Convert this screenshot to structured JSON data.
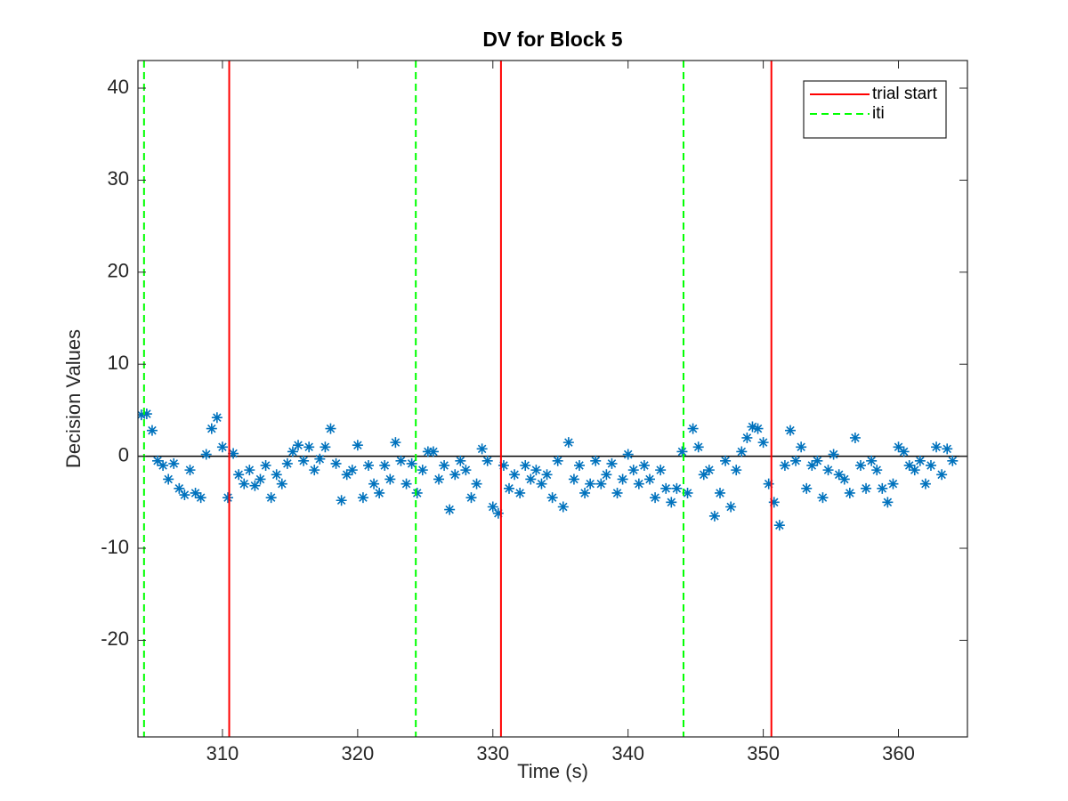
{
  "chart_data": {
    "type": "scatter",
    "title": "DV for Block 5",
    "xlabel": "Time (s)",
    "ylabel": "Decision Values",
    "xlim": [
      303.75,
      365.1
    ],
    "ylim": [
      -30.5,
      43
    ],
    "xticks": [
      310,
      320,
      330,
      340,
      350,
      360
    ],
    "yticks": [
      -20,
      -10,
      0,
      10,
      20,
      30,
      40
    ],
    "marker": "asterisk",
    "series": [
      {
        "color": "#0072bd",
        "x": [
          304.0,
          304.4,
          304.8,
          305.2,
          305.6,
          306.0,
          306.4,
          306.8,
          307.2,
          307.6,
          308.0,
          308.4,
          308.8,
          309.2,
          309.6,
          310.0,
          310.4,
          310.8,
          311.2,
          311.6,
          312.0,
          312.4,
          312.8,
          313.2,
          313.6,
          314.0,
          314.4,
          314.8,
          315.2,
          315.6,
          316.0,
          316.4,
          316.8,
          317.2,
          317.6,
          318.0,
          318.4,
          318.8,
          319.2,
          319.6,
          320.0,
          320.4,
          320.8,
          321.2,
          321.6,
          322.0,
          322.4,
          322.8,
          323.2,
          323.6,
          324.0,
          324.4,
          324.8,
          325.2,
          325.6,
          326.0,
          326.4,
          326.8,
          327.2,
          327.6,
          328.0,
          328.4,
          328.8,
          329.2,
          329.6,
          330.0,
          330.4,
          330.8,
          331.2,
          331.6,
          332.0,
          332.4,
          332.8,
          333.2,
          333.6,
          334.0,
          334.4,
          334.8,
          335.2,
          335.6,
          336.0,
          336.4,
          336.8,
          337.2,
          337.6,
          338.0,
          338.4,
          338.8,
          339.2,
          339.6,
          340.0,
          340.4,
          340.8,
          341.2,
          341.6,
          342.0,
          342.4,
          342.8,
          343.2,
          343.6,
          344.0,
          344.4,
          344.8,
          345.2,
          345.6,
          346.0,
          346.4,
          346.8,
          347.2,
          347.6,
          348.0,
          348.4,
          348.8,
          349.2,
          349.6,
          350.0,
          350.4,
          350.8,
          351.2,
          351.6,
          352.0,
          352.4,
          352.8,
          353.2,
          353.6,
          354.0,
          354.4,
          354.8,
          355.2,
          355.6,
          356.0,
          356.4,
          356.8,
          357.2,
          357.6,
          358.0,
          358.4,
          358.8,
          359.2,
          359.6,
          360.0,
          360.4,
          360.8,
          361.2,
          361.6,
          362.0,
          362.4,
          362.8,
          363.2,
          363.6,
          364.0
        ],
        "values": [
          4.5,
          4.6,
          2.8,
          -0.5,
          -1.0,
          -2.5,
          -0.8,
          -3.5,
          -4.2,
          -1.5,
          -4.0,
          -4.5,
          0.2,
          3.0,
          4.2,
          1.0,
          -4.5,
          0.3,
          -2.0,
          -3.0,
          -1.5,
          -3.2,
          -2.5,
          -1.0,
          -4.5,
          -2.0,
          -3.0,
          -0.8,
          0.5,
          1.2,
          -0.5,
          1.0,
          -1.5,
          -0.3,
          1.0,
          3.0,
          -0.8,
          -4.8,
          -2.0,
          -1.5,
          1.2,
          -4.5,
          -1.0,
          -3.0,
          -4.0,
          -1.0,
          -2.5,
          1.5,
          -0.5,
          -3.0,
          -0.8,
          -4.0,
          -1.5,
          0.5,
          0.5,
          -2.5,
          -1.0,
          -5.8,
          -2.0,
          -0.5,
          -1.5,
          -4.5,
          -3.0,
          0.8,
          -0.5,
          -5.5,
          -6.2,
          -1.0,
          -3.5,
          -2.0,
          -4.0,
          -1.0,
          -2.5,
          -1.5,
          -3.0,
          -2.0,
          -4.5,
          -0.5,
          -5.5,
          1.5,
          -2.5,
          -1.0,
          -4.0,
          -3.0,
          -0.5,
          -3.0,
          -2.0,
          -0.8,
          -4.0,
          -2.5,
          0.2,
          -1.5,
          -3.0,
          -1.0,
          -2.5,
          -4.5,
          -1.5,
          -3.5,
          -5.0,
          -3.5,
          0.5,
          -4.0,
          3.0,
          1.0,
          -2.0,
          -1.5,
          -6.5,
          -4.0,
          -0.5,
          -5.5,
          -1.5,
          0.5,
          2.0,
          3.2,
          3.0,
          1.5,
          -3.0,
          -5.0,
          -7.5,
          -1.0,
          2.8,
          -0.5,
          1.0,
          -3.5,
          -1.0,
          -0.5,
          -4.5,
          -1.5,
          0.2,
          -2.0,
          -2.5,
          -4.0,
          2.0,
          -1.0,
          -3.5,
          -0.5,
          -1.5,
          -3.5,
          -5.0,
          -3.0,
          1.0,
          0.5,
          -1.0,
          -1.5,
          -0.5,
          -3.0,
          -1.0,
          1.0,
          -2.0,
          0.8,
          -0.5
        ]
      }
    ],
    "reference_line": {
      "value": 0,
      "color": "#000000"
    },
    "vlines": [
      {
        "name": "trial start",
        "color": "#ff0000",
        "style": "solid",
        "x": [
          310.5,
          330.6,
          350.6
        ]
      },
      {
        "name": "iti",
        "color": "#00ff00",
        "style": "dashed",
        "x": [
          304.2,
          324.3,
          344.1
        ]
      }
    ],
    "legend": "upper right"
  }
}
